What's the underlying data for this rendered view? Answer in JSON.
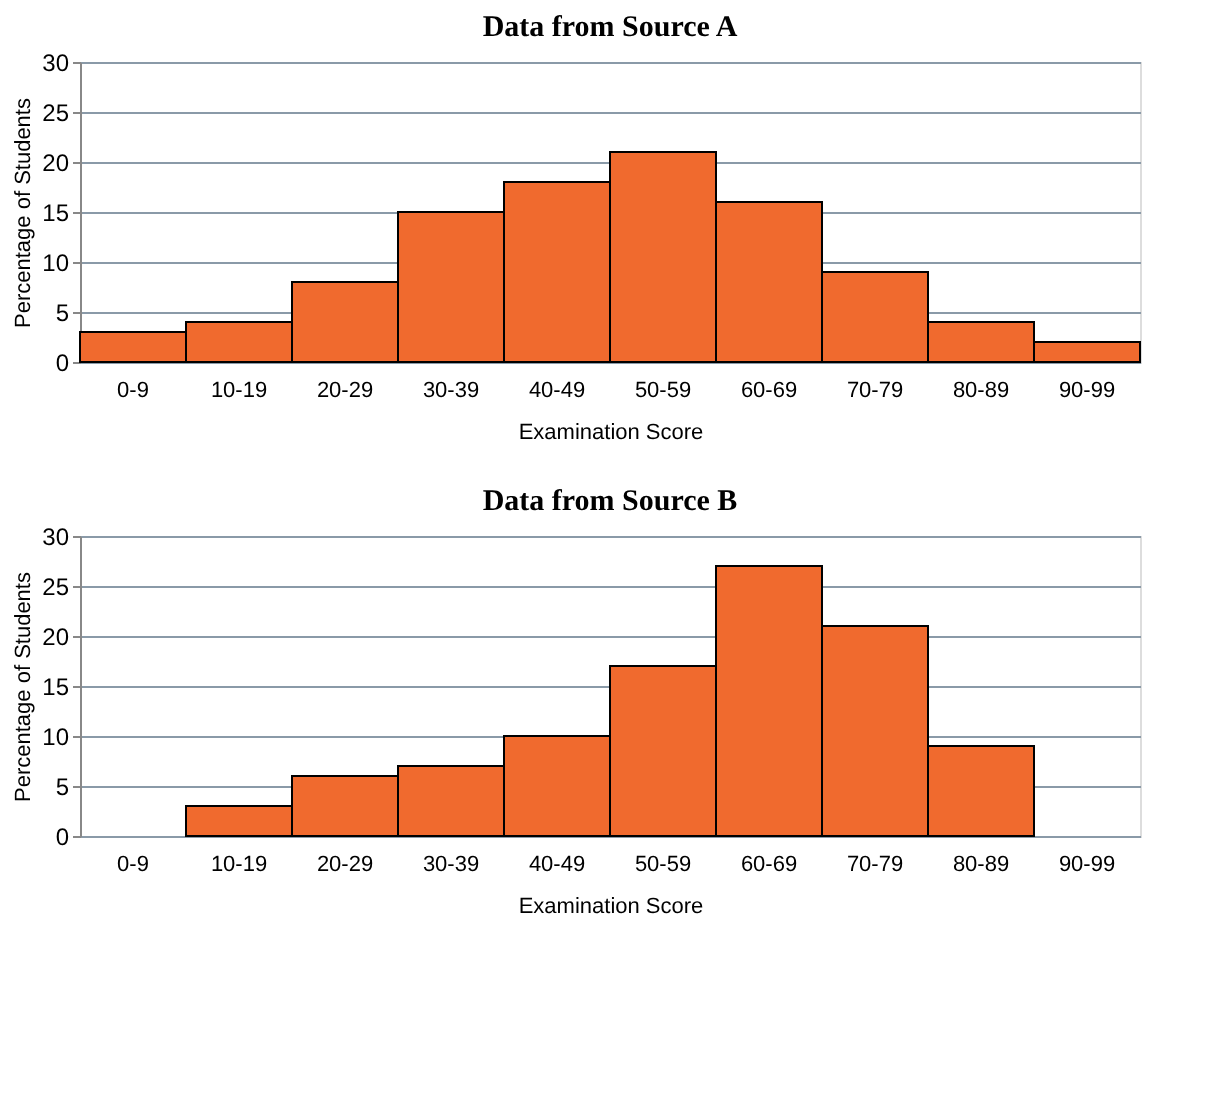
{
  "chart_data": [
    {
      "type": "bar",
      "title": "Data from Source A",
      "xlabel": "Examination Score",
      "ylabel": "Percentage of Students",
      "categories": [
        "0-9",
        "10-19",
        "20-29",
        "30-39",
        "40-49",
        "50-59",
        "60-69",
        "70-79",
        "80-89",
        "90-99"
      ],
      "values": [
        3,
        4,
        8,
        15,
        18,
        21,
        16,
        9,
        4,
        2
      ],
      "color": "#f06a2e",
      "ylim": [
        0,
        30
      ],
      "yticks": [
        0,
        5,
        10,
        15,
        20,
        25,
        30
      ],
      "grid": "y"
    },
    {
      "type": "bar",
      "title": "Data from Source B",
      "xlabel": "Examination Score",
      "ylabel": "Percentage of Students",
      "categories": [
        "0-9",
        "10-19",
        "20-29",
        "30-39",
        "40-49",
        "50-59",
        "60-69",
        "70-79",
        "80-89",
        "90-99"
      ],
      "values": [
        null,
        3,
        6,
        7,
        10,
        17,
        27,
        21,
        9,
        null
      ],
      "color": "#f06a2e",
      "ylim": [
        0,
        30
      ],
      "yticks": [
        0,
        5,
        10,
        15,
        20,
        25,
        30
      ],
      "grid": "y"
    }
  ]
}
